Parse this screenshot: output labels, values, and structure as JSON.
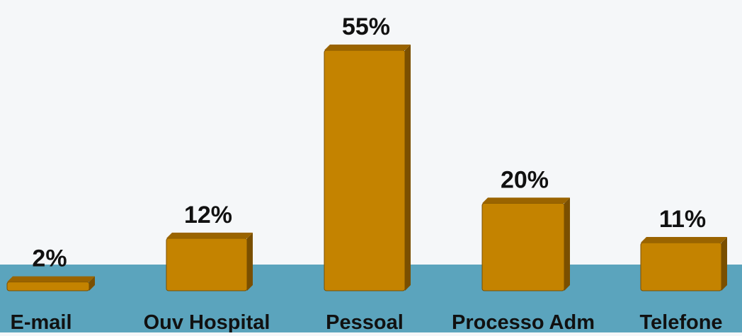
{
  "chart_data": {
    "type": "bar",
    "categories": [
      "E-mail",
      "Ouv Hospital",
      "Pessoal",
      "Processo Adm",
      "Telefone"
    ],
    "values": [
      2,
      12,
      55,
      20,
      11
    ],
    "value_labels": [
      "2%",
      "12%",
      "55%",
      "20%",
      "11%"
    ],
    "ylim": [
      0,
      55
    ],
    "grid": false,
    "legend": "none",
    "colors": {
      "bar": "#c48300",
      "bar_top": "#9a6400",
      "bar_side": "#7a4f00",
      "floor": "#5ba4bd",
      "background": "#f5f7f9"
    }
  }
}
